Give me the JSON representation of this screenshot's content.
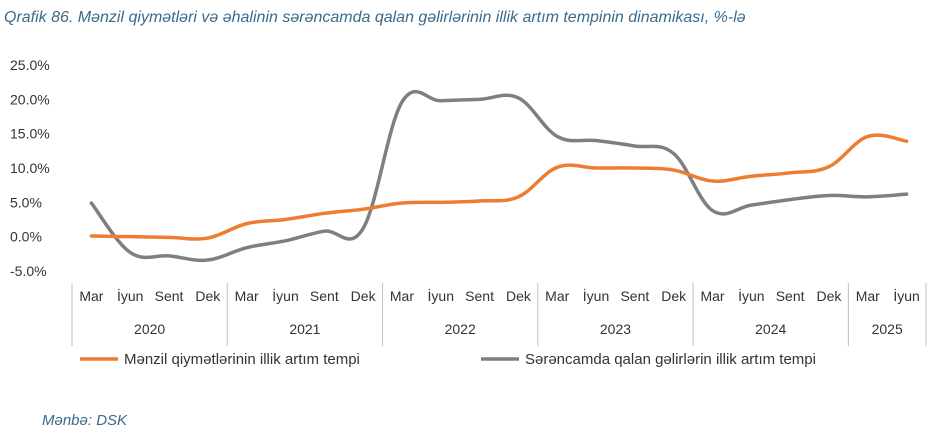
{
  "header": {
    "title": "Qrafik 86. Mənzil qiymətləri və əhalinin sərəncamda qalan gəlirlərinin illik artım tempinin dinamikası, %-lə"
  },
  "footer": {
    "source": "Mənbə: DSK"
  },
  "chart_data": {
    "type": "line",
    "title": "",
    "xlabel": "",
    "ylabel": "",
    "ylim": [
      -5,
      25
    ],
    "yticks": [
      "25.0%",
      "20.0%",
      "15.0%",
      "10.0%",
      "5.0%",
      "0.0%",
      "-5.0%"
    ],
    "yticks_values": [
      25,
      20,
      15,
      10,
      5,
      0,
      -5
    ],
    "grid": false,
    "legend": "bottom",
    "categories": [
      "Mar",
      "İyun",
      "Sent",
      "Dek",
      "Mar",
      "İyun",
      "Sent",
      "Dek",
      "Mar",
      "İyun",
      "Sent",
      "Dek",
      "Mar",
      "İyun",
      "Sent",
      "Dek",
      "Mar",
      "İyun",
      "Sent",
      "Dek",
      "Mar",
      "İyun"
    ],
    "years": [
      {
        "label": "2020",
        "count": 4
      },
      {
        "label": "2021",
        "count": 4
      },
      {
        "label": "2022",
        "count": 4
      },
      {
        "label": "2023",
        "count": 4
      },
      {
        "label": "2024",
        "count": 4
      },
      {
        "label": "2025",
        "count": 2
      }
    ],
    "series": [
      {
        "name": "Mənzil qiymətlərinin illik artım tempi",
        "color": "#ED7D31",
        "values": [
          0.1,
          0.0,
          -0.1,
          -0.2,
          1.9,
          2.5,
          3.4,
          4.0,
          4.9,
          5.0,
          5.2,
          5.8,
          10.1,
          10.0,
          10.0,
          9.7,
          8.1,
          8.8,
          9.3,
          10.2,
          14.6,
          13.9
        ]
      },
      {
        "name": "Sərəncamda qalan gəlirlərin illik artım tempi",
        "color": "#7F7F7F",
        "values": [
          4.9,
          -2.3,
          -2.8,
          -3.4,
          -1.6,
          -0.6,
          0.8,
          1.2,
          19.6,
          19.8,
          20.0,
          20.2,
          14.6,
          14.0,
          13.2,
          12.1,
          3.8,
          4.6,
          5.4,
          6.0,
          5.8,
          6.2
        ]
      }
    ]
  }
}
